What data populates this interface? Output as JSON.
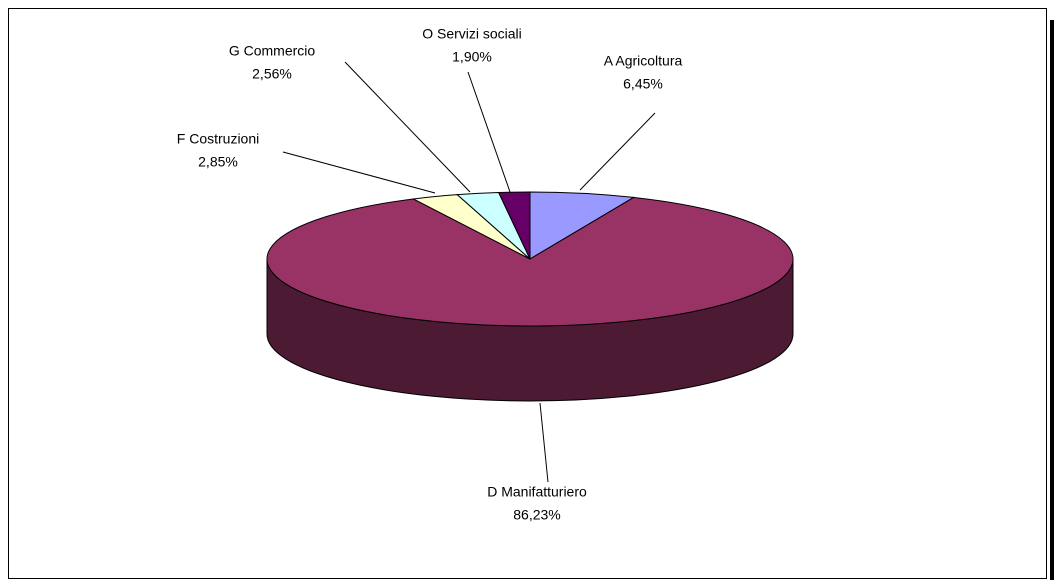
{
  "chart_data": {
    "type": "pie",
    "categories": [
      "A Agricoltura",
      "D Manifatturiero",
      "F Costruzioni",
      "G Commercio",
      "O Servizi sociali"
    ],
    "values": [
      6.45,
      86.23,
      2.85,
      2.56,
      1.9
    ],
    "value_labels": [
      "6,45%",
      "86,23%",
      "2,85%",
      "2,56%",
      "1,90%"
    ],
    "colors": [
      "#9999ff",
      "#993366",
      "#ffffcc",
      "#ccffff",
      "#660066"
    ]
  }
}
